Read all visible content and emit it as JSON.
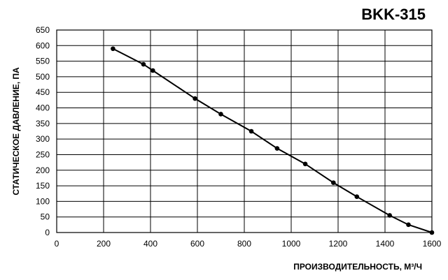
{
  "chart_data": {
    "type": "line",
    "title": "BKK-315",
    "xlabel": "ПРОИЗВОДИТЕЛЬНОСТЬ, М³/Ч",
    "ylabel": "СТАТИЧЕСКОЕ ДАВЛЕНИЕ, ПА",
    "xlim": [
      0,
      1600
    ],
    "ylim": [
      0,
      650
    ],
    "xticks": [
      0,
      200,
      400,
      600,
      800,
      1000,
      1200,
      1400,
      1600
    ],
    "yticks": [
      0,
      50,
      100,
      150,
      200,
      250,
      300,
      350,
      400,
      450,
      500,
      550,
      600,
      650
    ],
    "grid": true,
    "series": [
      {
        "x": [
          240,
          370,
          410,
          590,
          700,
          830,
          940,
          1060,
          1180,
          1280,
          1420,
          1500,
          1600
        ],
        "y": [
          590,
          540,
          520,
          430,
          380,
          325,
          270,
          220,
          160,
          115,
          55,
          25,
          0
        ]
      }
    ]
  }
}
